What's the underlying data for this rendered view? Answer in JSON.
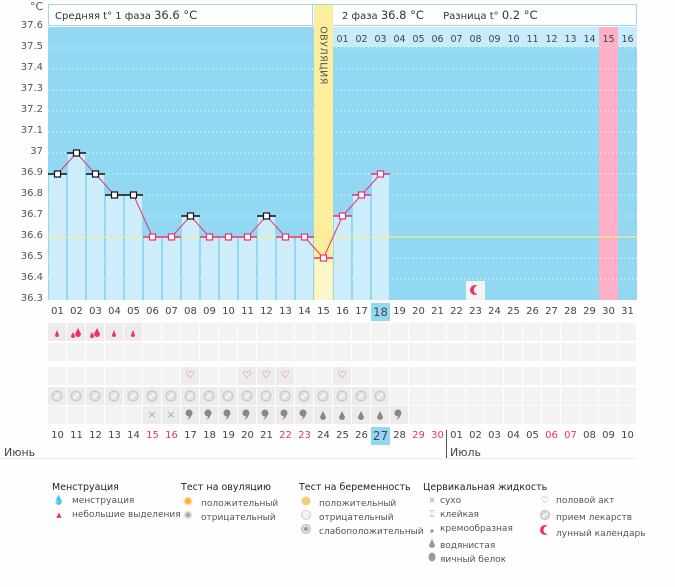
{
  "header": {
    "unit": "°C",
    "phase1_label": "Средняя t° 1 фаза",
    "phase1_value": "36.6 °C",
    "phase2_label": "2 фаза",
    "phase2_value": "36.8 °C",
    "diff_label": "Разница t°",
    "diff_value": "0.2 °C",
    "ovulation_label": "ОВУЛЯЦИЯ"
  },
  "chart_data": {
    "type": "bar",
    "title": "",
    "xlabel": "",
    "ylabel": "°C",
    "ylim": [
      36.3,
      37.6
    ],
    "y_ticks": [
      "37.6",
      "37.5",
      "37.4",
      "37.3",
      "37.2",
      "37.1",
      "37",
      "36.9",
      "36.8",
      "36.7",
      "36.6",
      "36.5",
      "36.4",
      "36.3"
    ],
    "cycle_days": [
      "01",
      "02",
      "03",
      "04",
      "05",
      "06",
      "07",
      "08",
      "09",
      "10",
      "11",
      "12",
      "13",
      "14",
      "15",
      "16",
      "17",
      "18",
      "19",
      "20",
      "21",
      "22",
      "23",
      "24",
      "25",
      "26",
      "27",
      "28",
      "29",
      "30",
      "31"
    ],
    "temperatures": [
      36.9,
      37.0,
      36.9,
      36.8,
      36.8,
      36.6,
      36.6,
      36.7,
      36.6,
      36.6,
      36.6,
      36.7,
      36.6,
      36.6,
      36.5,
      36.7,
      36.8,
      36.9
    ],
    "coverline": 36.6,
    "ovulation_day": 15,
    "current_day": 18,
    "expected_period_day": 30,
    "moon_day": 23,
    "phase2_day_numbers": [
      "01",
      "02",
      "03",
      "04",
      "05",
      "06",
      "07",
      "08",
      "09",
      "10",
      "11",
      "12",
      "13",
      "14",
      "15",
      "16"
    ],
    "phase2_highlight_index": 15,
    "colors": {
      "background": "#93d8f2",
      "bar": "#cdedfb",
      "ovulation": "#fcee9c",
      "period": "#fdb0c6",
      "line": "#e8336e",
      "coverline": "#f5ef8a"
    }
  },
  "calendar": {
    "dates": [
      "10",
      "11",
      "12",
      "13",
      "14",
      "15",
      "16",
      "17",
      "18",
      "19",
      "20",
      "21",
      "22",
      "23",
      "24",
      "25",
      "26",
      "27",
      "28",
      "29",
      "30",
      "01",
      "02",
      "03",
      "04",
      "05",
      "06",
      "07",
      "08",
      "09",
      "10"
    ],
    "weekend_indices": [
      5,
      6,
      12,
      13,
      19,
      20,
      26,
      27
    ],
    "today_index": 17,
    "month_june": "Июнь",
    "month_july": "Июль",
    "july_start_index": 21
  },
  "rows": {
    "menstruation": [
      "small",
      "heavy",
      "heavy",
      "small",
      "small"
    ],
    "intercourse_days": [
      8,
      11,
      12,
      13,
      16
    ],
    "medication_days": 18,
    "cervical": [
      "",
      "",
      "",
      "",
      "",
      "dry",
      "dry",
      "creamy",
      "creamy",
      "creamy",
      "creamy",
      "creamy",
      "creamy",
      "creamy",
      "watery",
      "watery",
      "watery",
      "watery",
      "creamy"
    ]
  },
  "legend": {
    "menstruation": {
      "title": "Менструация",
      "items": [
        "менструация",
        "небольшие выделения"
      ]
    },
    "ovulation_test": {
      "title": "Тест на овуляцию",
      "items": [
        "положительный",
        "отрицательный"
      ]
    },
    "pregnancy_test": {
      "title": "Тест на беременность",
      "items": [
        "положительный",
        "отрицательный",
        "слабоположительный"
      ]
    },
    "cervical_fluid": {
      "title": "Цервикальная жидкость",
      "items": [
        "сухо",
        "клейкая",
        "кремообразная",
        "водянистая",
        "яичный белок"
      ]
    },
    "other": {
      "items": [
        "половой акт",
        "прием лекарств",
        "лунный календарь"
      ]
    }
  }
}
